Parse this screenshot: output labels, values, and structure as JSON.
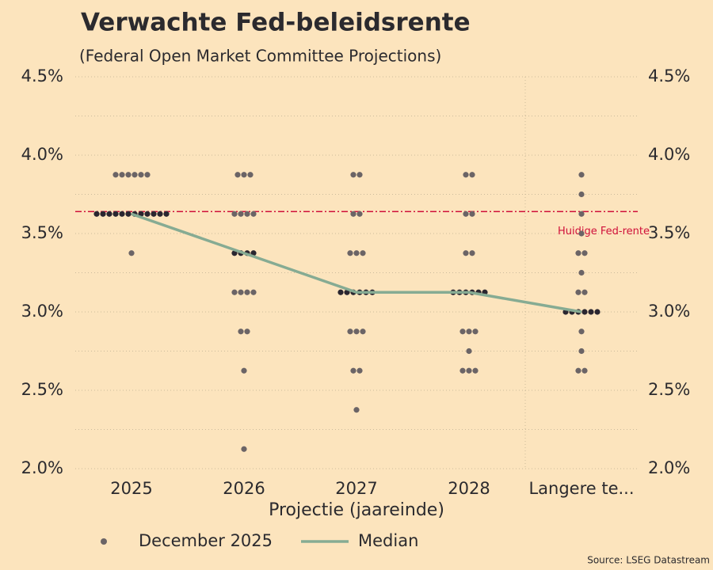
{
  "chart_data": {
    "type": "dot",
    "title": "Verwachte Fed-beleidsrente",
    "subtitle": "(Federal Open Market Committee Projections)",
    "x_label": "Projectie (jaareinde)",
    "source": "Source: LSEG Datastream",
    "categories": [
      "2025",
      "2026",
      "2027",
      "2028",
      "Langere te..."
    ],
    "series": [
      {
        "name": "December 2025",
        "color": "#6b6466",
        "median_color": "#2a2630",
        "values": [
          [
            3.875,
            3.875,
            3.875,
            3.875,
            3.875,
            3.875,
            3.625,
            3.625,
            3.625,
            3.625,
            3.625,
            3.625,
            3.625,
            3.625,
            3.625,
            3.625,
            3.625,
            3.625,
            3.375
          ],
          [
            3.875,
            3.875,
            3.875,
            3.625,
            3.625,
            3.625,
            3.625,
            3.375,
            3.375,
            3.375,
            3.375,
            3.125,
            3.125,
            3.125,
            3.125,
            2.875,
            2.875,
            2.625,
            2.125
          ],
          [
            3.875,
            3.875,
            3.625,
            3.625,
            3.375,
            3.375,
            3.375,
            3.125,
            3.125,
            3.125,
            3.125,
            3.125,
            3.125,
            2.875,
            2.875,
            2.875,
            2.625,
            2.625,
            2.375
          ],
          [
            3.875,
            3.875,
            3.625,
            3.625,
            3.375,
            3.375,
            3.125,
            3.125,
            3.125,
            3.125,
            3.125,
            3.125,
            2.875,
            2.875,
            2.875,
            2.75,
            2.625,
            2.625,
            2.625
          ],
          [
            3.875,
            3.75,
            3.625,
            3.5,
            3.375,
            3.375,
            3.25,
            3.125,
            3.125,
            3.0,
            3.0,
            3.0,
            3.0,
            3.0,
            3.0,
            2.875,
            2.75,
            2.625,
            2.625
          ]
        ]
      },
      {
        "name": "Median",
        "color": "#86ab93",
        "values": [
          3.625,
          3.375,
          3.125,
          3.125,
          3.0
        ]
      }
    ],
    "reference_line": {
      "value": 3.64,
      "label": "Huidige Fed-rente",
      "color": "#d0103a"
    },
    "ylim": [
      2.0,
      4.5
    ],
    "yticks": [
      {
        "value": 2.0,
        "label": "2.0%"
      },
      {
        "value": 2.5,
        "label": "2.5%"
      },
      {
        "value": 3.0,
        "label": "3.0%"
      },
      {
        "value": 3.5,
        "label": "3.5%"
      },
      {
        "value": 4.0,
        "label": "4.0%"
      },
      {
        "value": 4.5,
        "label": "4.5%"
      }
    ],
    "minor_yticks": [
      2.25,
      2.75,
      3.25,
      3.75,
      4.25
    ],
    "grid": true
  }
}
